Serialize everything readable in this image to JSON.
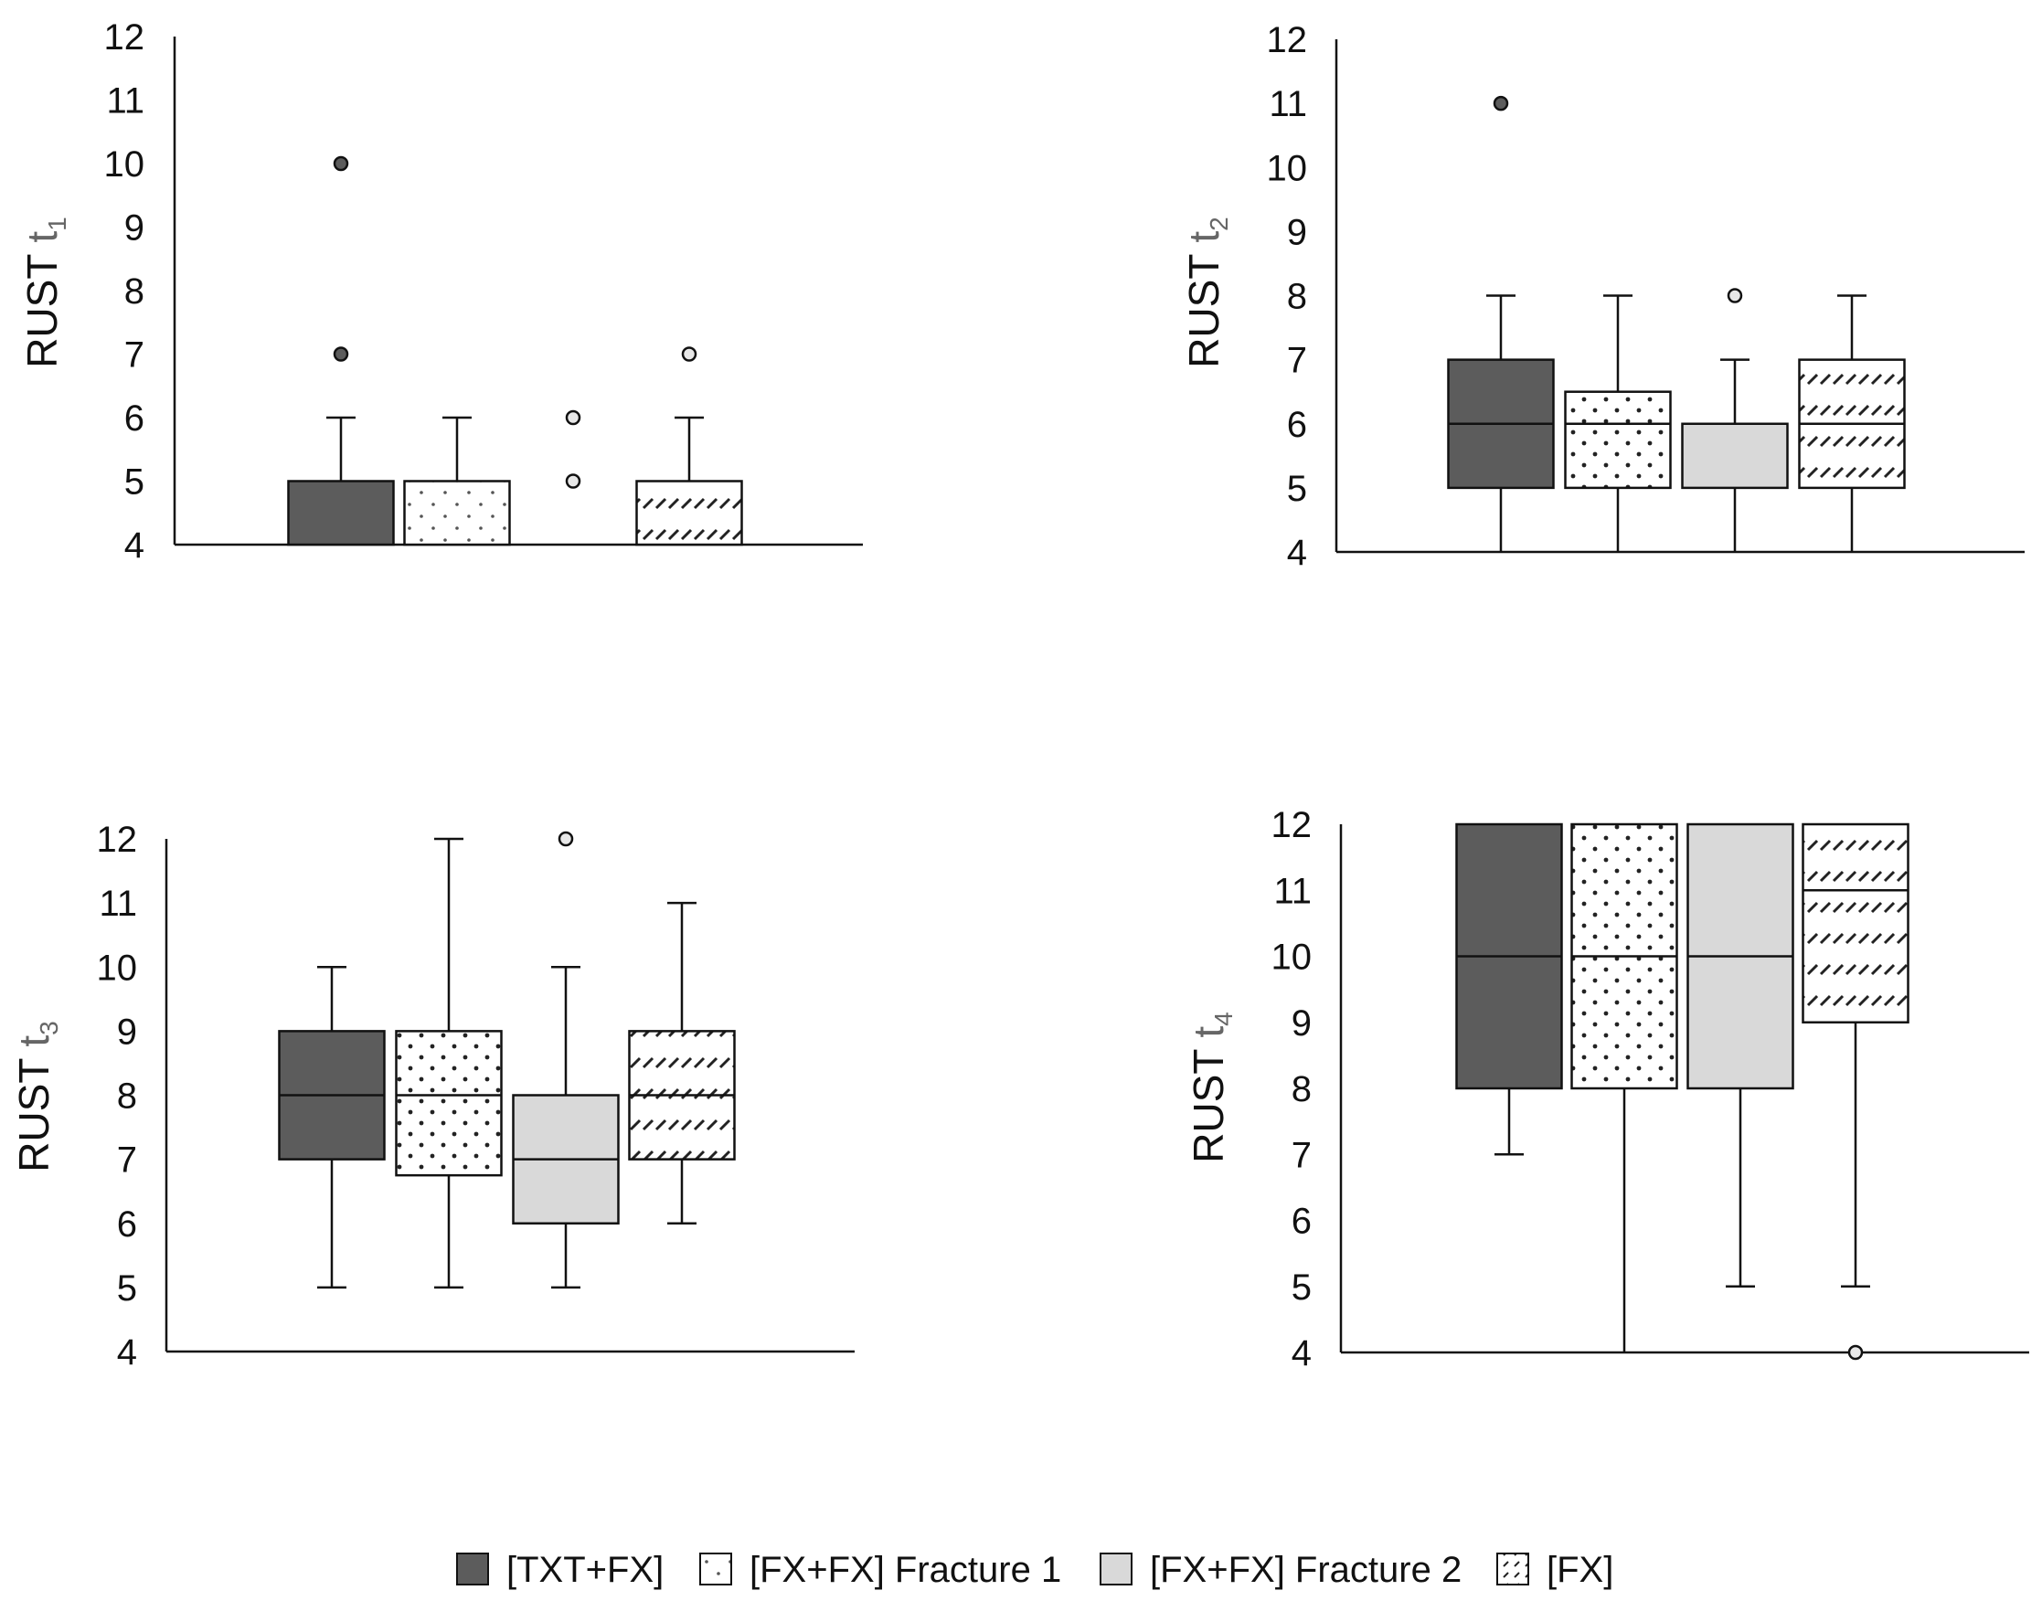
{
  "colors": {
    "txt_fx": "#5c5c5c",
    "fx_fx_1": "#ffffff",
    "fx_fx_2": "#d9d9d9",
    "fx": "#ffffff",
    "axis": "#111111",
    "outlier_dark": "#5c5c5c",
    "outlier_light": "#e8e8e8"
  },
  "legend": [
    {
      "key": "txt_fx",
      "label": "[TXT+FX]",
      "pattern": "solid"
    },
    {
      "key": "fx_fx_1",
      "label": "[FX+FX] Fracture 1",
      "pattern": "dots"
    },
    {
      "key": "fx_fx_2",
      "label": "[FX+FX] Fracture 2",
      "pattern": "solid"
    },
    {
      "key": "fx",
      "label": "[FX]",
      "pattern": "hatch"
    }
  ],
  "chart_data": [
    {
      "type": "boxplot",
      "ylabel": "RUST t",
      "ylabel_sub": "1",
      "ylim": [
        4,
        12
      ],
      "yticks": [
        4,
        5,
        6,
        7,
        8,
        9,
        10,
        11,
        12
      ],
      "series": [
        {
          "name": "[TXT+FX]",
          "key": "txt_fx",
          "min": 4,
          "q1": 4,
          "median": 4,
          "q3": 5,
          "max": 6,
          "outliers": [
            7,
            10
          ]
        },
        {
          "name": "[FX+FX] Fracture 1",
          "key": "fx_fx_1",
          "min": 4,
          "q1": 4,
          "median": 4,
          "q3": 5,
          "max": 6,
          "outliers": []
        },
        {
          "name": "[FX+FX] Fracture 2",
          "key": "fx_fx_2",
          "min": 4,
          "q1": 4,
          "median": 4,
          "q3": 4,
          "max": 4,
          "outliers": [
            5,
            6
          ]
        },
        {
          "name": "[FX]",
          "key": "fx",
          "min": 4,
          "q1": 4,
          "median": 4,
          "q3": 5,
          "max": 6,
          "outliers": [
            7
          ]
        }
      ]
    },
    {
      "type": "boxplot",
      "ylabel": "RUST t",
      "ylabel_sub": "2",
      "ylim": [
        4,
        12
      ],
      "yticks": [
        4,
        5,
        6,
        7,
        8,
        9,
        10,
        11,
        12
      ],
      "series": [
        {
          "name": "[TXT+FX]",
          "key": "txt_fx",
          "min": 4,
          "q1": 5,
          "median": 6,
          "q3": 7,
          "max": 8,
          "outliers": [
            11
          ]
        },
        {
          "name": "[FX+FX] Fracture 1",
          "key": "fx_fx_1",
          "min": 4,
          "q1": 5,
          "median": 6,
          "q3": 6.5,
          "max": 8,
          "outliers": []
        },
        {
          "name": "[FX+FX] Fracture 2",
          "key": "fx_fx_2",
          "min": 4,
          "q1": 5,
          "median": 5,
          "q3": 6,
          "max": 7,
          "outliers": [
            8
          ]
        },
        {
          "name": "[FX]",
          "key": "fx",
          "min": 4,
          "q1": 5,
          "median": 6,
          "q3": 7,
          "max": 8,
          "outliers": []
        }
      ]
    },
    {
      "type": "boxplot",
      "ylabel": "RUST t",
      "ylabel_sub": "3",
      "ylim": [
        4,
        12
      ],
      "yticks": [
        4,
        5,
        6,
        7,
        8,
        9,
        10,
        11,
        12
      ],
      "series": [
        {
          "name": "[TXT+FX]",
          "key": "txt_fx",
          "min": 5,
          "q1": 7,
          "median": 8,
          "q3": 9,
          "max": 10,
          "outliers": []
        },
        {
          "name": "[FX+FX] Fracture 1",
          "key": "fx_fx_1",
          "min": 5,
          "q1": 6.75,
          "median": 8,
          "q3": 9,
          "max": 12,
          "outliers": []
        },
        {
          "name": "[FX+FX] Fracture 2",
          "key": "fx_fx_2",
          "min": 5,
          "q1": 6,
          "median": 7,
          "q3": 8,
          "max": 10,
          "outliers": [
            12
          ]
        },
        {
          "name": "[FX]",
          "key": "fx",
          "min": 6,
          "q1": 7,
          "median": 8,
          "q3": 9,
          "max": 11,
          "outliers": []
        }
      ]
    },
    {
      "type": "boxplot",
      "ylabel": "RUST t",
      "ylabel_sub": "4",
      "ylim": [
        4,
        12
      ],
      "yticks": [
        4,
        5,
        6,
        7,
        8,
        9,
        10,
        11,
        12
      ],
      "series": [
        {
          "name": "[TXT+FX]",
          "key": "txt_fx",
          "min": 7,
          "q1": 8,
          "median": 10,
          "q3": 12,
          "max": 12,
          "outliers": []
        },
        {
          "name": "[FX+FX] Fracture 1",
          "key": "fx_fx_1",
          "min": 4,
          "q1": 8,
          "median": 10,
          "q3": 12,
          "max": 12,
          "outliers": []
        },
        {
          "name": "[FX+FX] Fracture 2",
          "key": "fx_fx_2",
          "min": 5,
          "q1": 8,
          "median": 10,
          "q3": 12,
          "max": 12,
          "outliers": []
        },
        {
          "name": "[FX]",
          "key": "fx",
          "min": 5,
          "q1": 9,
          "median": 11,
          "q3": 12,
          "max": 12,
          "outliers": [
            4
          ]
        }
      ]
    }
  ]
}
